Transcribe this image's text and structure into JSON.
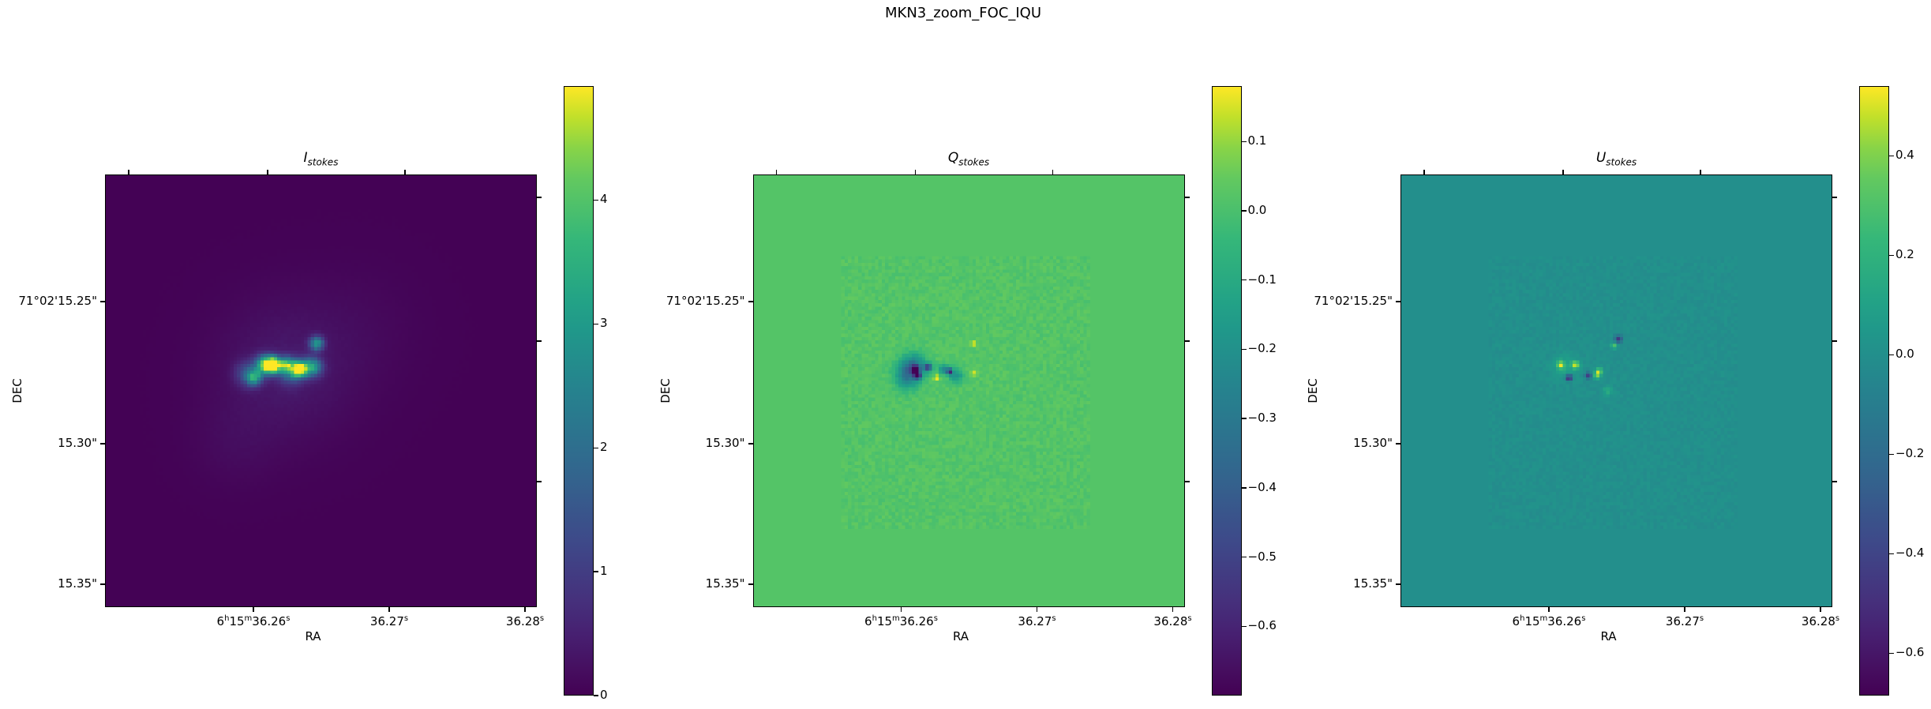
{
  "figure": {
    "suptitle": "MKN3_zoom_FOC_IQU"
  },
  "colormap": {
    "name": "viridis",
    "stops": [
      "#440154",
      "#482878",
      "#3e4989",
      "#31688e",
      "#26828e",
      "#1f9e89",
      "#35b779",
      "#6ece58",
      "#b5de2b",
      "#fde725"
    ]
  },
  "chart_data": [
    {
      "type": "heatmap",
      "title": "I",
      "title_sub": "stokes",
      "xlabel": "RA",
      "ylabel": "DEC",
      "xticks": [
        {
          "main": [
            "6",
            "15",
            "36.26"
          ],
          "sup": [
            "h",
            "m",
            "s"
          ]
        },
        {
          "main": [
            "36.27"
          ],
          "sup": [
            "s"
          ]
        },
        {
          "main": [
            "36.28"
          ],
          "sup": [
            "s"
          ]
        }
      ],
      "yticks": [
        "71°02'15.25\"",
        "15.30\"",
        "15.35\""
      ],
      "colorbar": {
        "vmin": 0,
        "vmax": 4.92,
        "ticks": [
          0,
          1,
          2,
          3,
          4
        ],
        "tick_labels": [
          "0",
          "1",
          "2",
          "3",
          "4"
        ]
      }
    },
    {
      "type": "heatmap",
      "title": "Q",
      "title_sub": "stokes",
      "xlabel": "RA",
      "ylabel": "DEC",
      "xticks": [
        {
          "main": [
            "6",
            "15",
            "36.26"
          ],
          "sup": [
            "h",
            "m",
            "s"
          ]
        },
        {
          "main": [
            "36.27"
          ],
          "sup": [
            "s"
          ]
        },
        {
          "main": [
            "36.28"
          ],
          "sup": [
            "s"
          ]
        }
      ],
      "yticks": [
        "71°02'15.25\"",
        "15.30\"",
        "15.35\""
      ],
      "colorbar": {
        "vmin": -0.7,
        "vmax": 0.18,
        "ticks": [
          0.1,
          0.0,
          -0.1,
          -0.2,
          -0.3,
          -0.4,
          -0.5,
          -0.6
        ],
        "tick_labels": [
          "0.1",
          "0.0",
          "−0.1",
          "−0.2",
          "−0.3",
          "−0.4",
          "−0.5",
          "−0.6"
        ]
      }
    },
    {
      "type": "heatmap",
      "title": "U",
      "title_sub": "stokes",
      "xlabel": "RA",
      "ylabel": "DEC",
      "xticks": [
        {
          "main": [
            "6",
            "15",
            "36.26"
          ],
          "sup": [
            "h",
            "m",
            "s"
          ]
        },
        {
          "main": [
            "36.27"
          ],
          "sup": [
            "s"
          ]
        },
        {
          "main": [
            "36.28"
          ],
          "sup": [
            "s"
          ]
        }
      ],
      "yticks": [
        "71°02'15.25\"",
        "15.30\"",
        "15.35\""
      ],
      "colorbar": {
        "vmin": -0.685,
        "vmax": 0.54,
        "ticks": [
          0.4,
          0.2,
          0.0,
          -0.2,
          -0.4,
          -0.6
        ],
        "tick_labels": [
          "0.4",
          "0.2",
          "0.0",
          "−0.2",
          "−0.4",
          "−0.6"
        ]
      }
    }
  ]
}
